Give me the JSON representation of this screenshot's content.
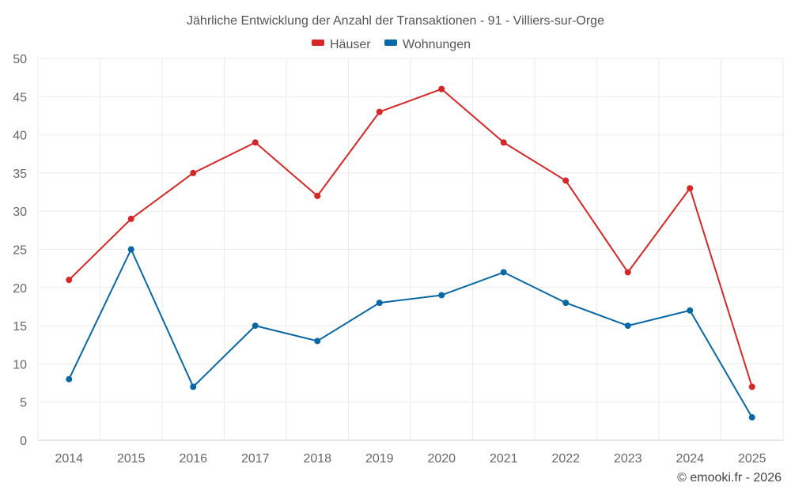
{
  "chart_data": {
    "type": "line",
    "title": "Jährliche Entwicklung der Anzahl der Transaktionen - 91 - Villiers-sur-Orge",
    "categories": [
      "2014",
      "2015",
      "2016",
      "2017",
      "2018",
      "2019",
      "2020",
      "2021",
      "2022",
      "2023",
      "2024",
      "2025"
    ],
    "series": [
      {
        "name": "Häuser",
        "color": "#d62728",
        "values": [
          21,
          29,
          35,
          39,
          32,
          43,
          46,
          39,
          34,
          22,
          33,
          7
        ]
      },
      {
        "name": "Wohnungen",
        "color": "#0868a6",
        "values": [
          8,
          25,
          7,
          15,
          13,
          18,
          19,
          22,
          18,
          15,
          17,
          3
        ]
      }
    ],
    "ylim": [
      0,
      50
    ],
    "yticks": [
      "0",
      "5",
      "10",
      "15",
      "20",
      "25",
      "30",
      "35",
      "40",
      "45",
      "50"
    ],
    "xlabel": "",
    "ylabel": "",
    "grid": true,
    "legend": "top-center"
  },
  "credit": "© emooki.fr - 2026"
}
